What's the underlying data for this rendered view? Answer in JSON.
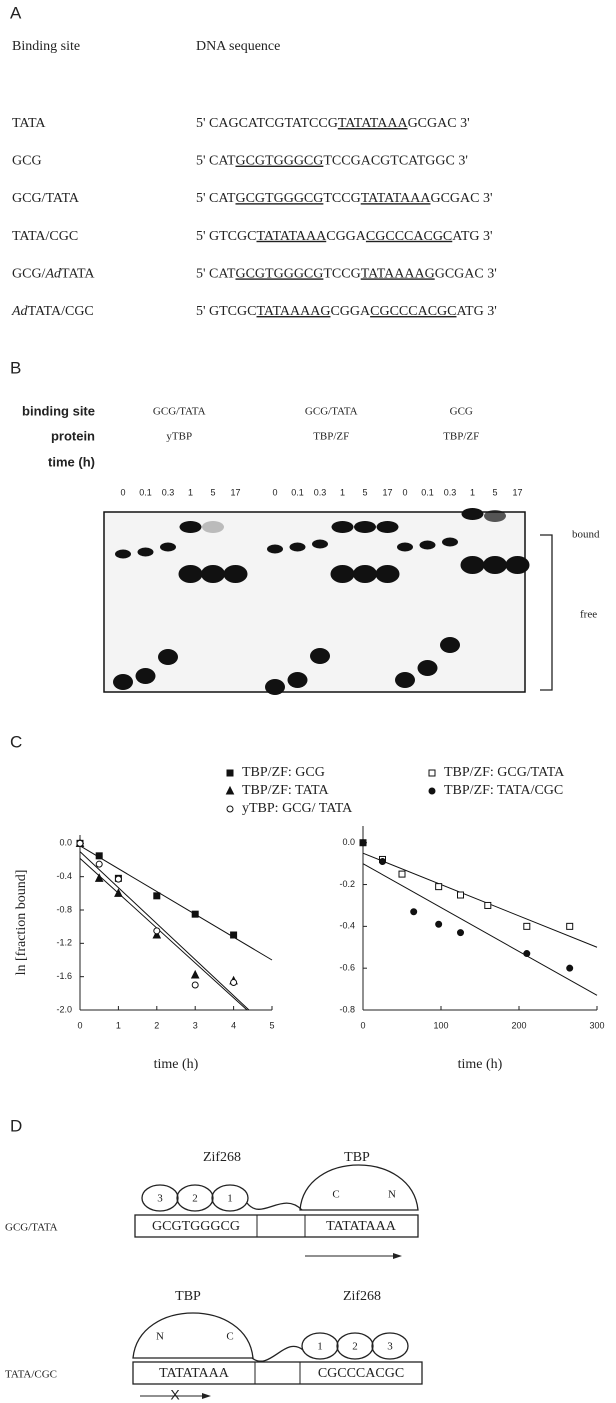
{
  "panel_a": {
    "label": "A",
    "headers": [
      "Binding site",
      "DNA sequence"
    ],
    "rows": [
      {
        "site": [
          {
            "text": "TATA"
          }
        ],
        "sequence": [
          {
            "text": "5' CAGCATCGTATCCG"
          },
          {
            "text": "TATATAAA",
            "underline": true
          },
          {
            "text": "GCGAC 3'"
          }
        ]
      },
      {
        "site": [
          {
            "text": "GCG"
          }
        ],
        "sequence": [
          {
            "text": "5' CAT"
          },
          {
            "text": "GCGTGGGCG",
            "underline": true
          },
          {
            "text": "TCCGACGTCATGGC 3'"
          }
        ]
      },
      {
        "site": [
          {
            "text": "GCG/TATA"
          }
        ],
        "sequence": [
          {
            "text": "5' CAT"
          },
          {
            "text": "GCGTGGGCG",
            "underline": true
          },
          {
            "text": "TCCG"
          },
          {
            "text": "TATATAAA",
            "underline": true
          },
          {
            "text": "GCGAC 3'"
          }
        ]
      },
      {
        "site": [
          {
            "text": "TATA/CGC"
          }
        ],
        "sequence": [
          {
            "text": "5' GTCGC"
          },
          {
            "text": "TATATAAA",
            "underline": true
          },
          {
            "text": "CGGA"
          },
          {
            "text": "CGCCCACGC",
            "underline": true
          },
          {
            "text": "ATG 3'"
          }
        ]
      },
      {
        "site": [
          {
            "text": "GCG/"
          },
          {
            "text": "Ad",
            "italic": true
          },
          {
            "text": "TATA"
          }
        ],
        "sequence": [
          {
            "text": "5' CAT"
          },
          {
            "text": "GCGTGGGCG",
            "underline": true
          },
          {
            "text": "TCCG"
          },
          {
            "text": "TATAAAAG",
            "underline": true
          },
          {
            "text": "GCGAC 3'"
          }
        ]
      },
      {
        "site": [
          {
            "text": "Ad",
            "italic": true
          },
          {
            "text": "TATA/CGC"
          }
        ],
        "sequence": [
          {
            "text": "5' GTCGC"
          },
          {
            "text": "TATAAAAG",
            "underline": true
          },
          {
            "text": "CGGA"
          },
          {
            "text": "CGCCCACGC",
            "underline": true
          },
          {
            "text": "ATG 3'"
          }
        ]
      }
    ]
  },
  "panel_b": {
    "label": "B",
    "row_labels": [
      "binding site",
      "protein",
      "time (h)"
    ],
    "groups": [
      {
        "binding_site": "GCG/TATA",
        "protein": "yTBP"
      },
      {
        "binding_site": "GCG/TATA",
        "protein": "TBP/ZF"
      },
      {
        "binding_site": "GCG",
        "protein": "TBP/ZF"
      }
    ],
    "times": [
      0,
      0.1,
      0.3,
      1,
      5,
      17
    ],
    "bound_label": "bound",
    "free_label": "free"
  },
  "panel_c": {
    "label": "C"
  },
  "chart_data": [
    {
      "type": "scatter",
      "y_label": "ln [fraction bound]",
      "x_label": "time (h)",
      "xlim": [
        0,
        5
      ],
      "xticks": [
        0,
        1,
        2,
        3,
        4,
        5
      ],
      "ylim": [
        -2.0,
        0.1
      ],
      "yticks": [
        {
          "value": 0,
          "label": "0.0"
        },
        -0.4,
        -0.8,
        -1.2,
        -1.6,
        {
          "value": -2,
          "label": "-2.0"
        }
      ],
      "series": [
        {
          "name": "TBP/ZF: GCG",
          "marker": "square",
          "filled": true,
          "color": "#111111",
          "x": [
            0,
            0.5,
            1,
            2,
            3,
            4
          ],
          "values": [
            0,
            -0.15,
            -0.42,
            -0.63,
            -0.85,
            -1.1
          ],
          "fit": {
            "x": [
              0,
              5
            ],
            "y": [
              -0.03,
              -1.4
            ]
          }
        },
        {
          "name": "TBP/ZF: TATA",
          "marker": "triangle",
          "filled": true,
          "color": "#111111",
          "x": [
            0,
            0.5,
            1,
            2,
            3,
            4
          ],
          "values": [
            0,
            -0.42,
            -0.6,
            -1.1,
            -1.58,
            -1.65
          ],
          "fit": {
            "x": [
              0,
              4.35
            ],
            "y": [
              -0.18,
              -2.0
            ]
          }
        },
        {
          "name": "yTBP: GCG/ TATA",
          "marker": "circle",
          "filled": false,
          "color": "#111111",
          "x": [
            0,
            0.5,
            1,
            2,
            3,
            4
          ],
          "values": [
            0,
            -0.25,
            -0.43,
            -1.05,
            -1.7,
            -1.67
          ],
          "fit": {
            "x": [
              0,
              4.4
            ],
            "y": [
              -0.1,
              -2.0
            ]
          }
        }
      ]
    },
    {
      "type": "scatter",
      "x_label": "time (h)",
      "xlim": [
        0,
        300
      ],
      "xticks": [
        0,
        100,
        200,
        300
      ],
      "ylim": [
        -0.8,
        0.08
      ],
      "yticks": [
        {
          "value": 0,
          "label": "0.0"
        },
        -0.2,
        -0.4,
        -0.6,
        -0.8
      ],
      "series": [
        {
          "name": "TBP/ZF: GCG/TATA",
          "marker": "square",
          "filled": false,
          "color": "#111111",
          "x": [
            0,
            25,
            50,
            97,
            125,
            160,
            210,
            265
          ],
          "values": [
            0,
            -0.08,
            -0.15,
            -0.21,
            -0.25,
            -0.3,
            -0.4,
            -0.4
          ],
          "fit": {
            "x": [
              0,
              300
            ],
            "y": [
              -0.05,
              -0.5
            ]
          }
        },
        {
          "name": "TBP/ZF: TATA/CGC",
          "marker": "circle",
          "filled": true,
          "color": "#111111",
          "x": [
            0,
            25,
            65,
            97,
            125,
            210,
            265
          ],
          "values": [
            0,
            -0.09,
            -0.33,
            -0.39,
            -0.43,
            -0.53,
            -0.6
          ],
          "fit": {
            "x": [
              0,
              300
            ],
            "y": [
              -0.1,
              -0.73
            ]
          }
        }
      ]
    }
  ],
  "panel_d": {
    "label": "D",
    "diagrams": [
      {
        "site": "GCG/TATA",
        "zif_label": "Zif268",
        "tbp_label": "TBP",
        "fingers": [
          3,
          2,
          1
        ],
        "tbp_ends": [
          "C",
          "N"
        ],
        "zif_box": "GCGTGGGCG",
        "tbp_box": "TATATAAA"
      },
      {
        "site": "TATA/CGC",
        "zif_label": "Zif268",
        "tbp_label": "TBP",
        "fingers": [
          1,
          2,
          3
        ],
        "tbp_ends": [
          "N",
          "C"
        ],
        "zif_box": "CGCCCACGC",
        "tbp_box": "TATATAAA",
        "blocked_mark": "X"
      }
    ]
  }
}
